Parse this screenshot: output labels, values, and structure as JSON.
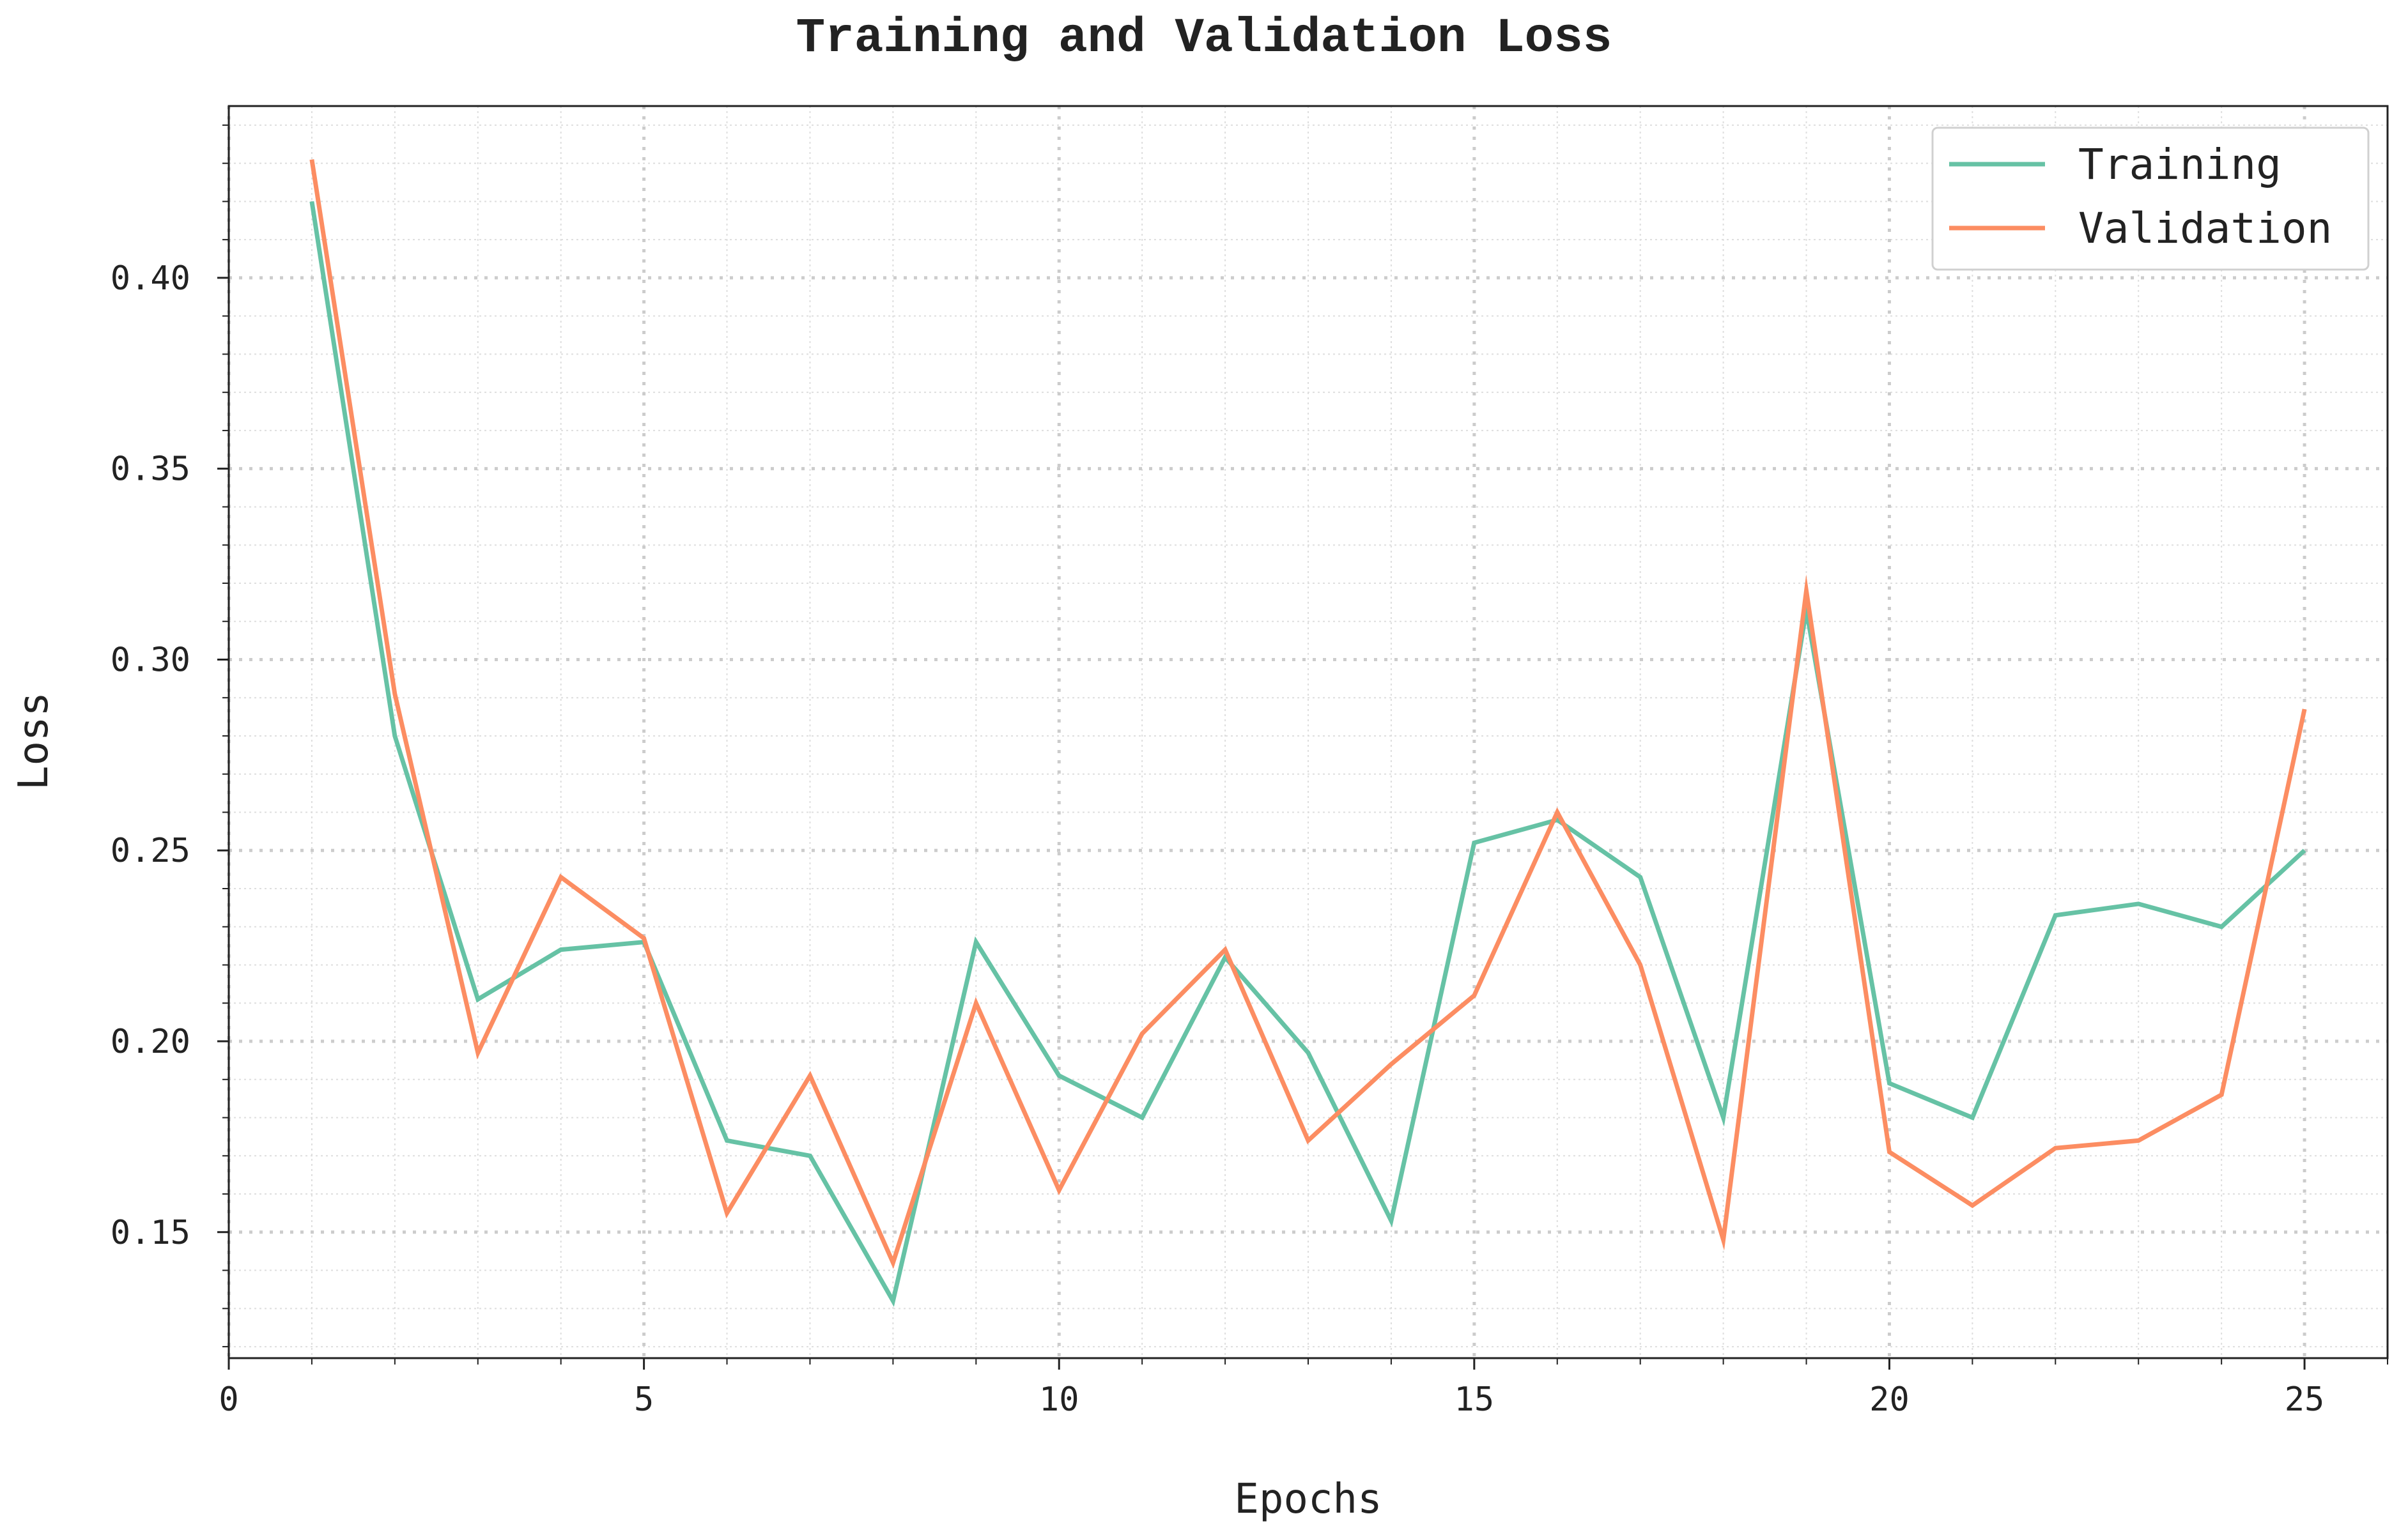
{
  "chart_data": {
    "type": "line",
    "title": "Training and Validation Loss",
    "xlabel": "Epochs",
    "ylabel": "Loss",
    "xlim": [
      0,
      26
    ],
    "ylim": [
      0.117,
      0.445
    ],
    "xticks": [
      0,
      5,
      10,
      15,
      20,
      25
    ],
    "xtick_labels": [
      "0",
      "5",
      "10",
      "15",
      "20",
      "25"
    ],
    "yticks": [
      0.15,
      0.2,
      0.25,
      0.3,
      0.35,
      0.4
    ],
    "ytick_labels": [
      "0.15",
      "0.20",
      "0.25",
      "0.30",
      "0.35",
      "0.40"
    ],
    "grid": true,
    "legend_position": "top-right",
    "x": [
      1,
      2,
      3,
      4,
      5,
      6,
      7,
      8,
      9,
      10,
      11,
      12,
      13,
      14,
      15,
      16,
      17,
      18,
      19,
      20,
      21,
      22,
      23,
      24,
      25
    ],
    "series": [
      {
        "name": "Training",
        "color": "#66c2a5",
        "values": [
          0.42,
          0.28,
          0.211,
          0.224,
          0.226,
          0.174,
          0.17,
          0.132,
          0.226,
          0.191,
          0.18,
          0.222,
          0.197,
          0.153,
          0.252,
          0.258,
          0.243,
          0.18,
          0.313,
          0.189,
          0.18,
          0.233,
          0.236,
          0.23,
          0.25
        ]
      },
      {
        "name": "Validation",
        "color": "#fc8d62",
        "values": [
          0.431,
          0.291,
          0.197,
          0.243,
          0.227,
          0.155,
          0.191,
          0.142,
          0.21,
          0.161,
          0.202,
          0.224,
          0.174,
          0.194,
          0.212,
          0.26,
          0.22,
          0.148,
          0.318,
          0.171,
          0.157,
          0.172,
          0.174,
          0.186,
          0.287
        ]
      }
    ]
  }
}
